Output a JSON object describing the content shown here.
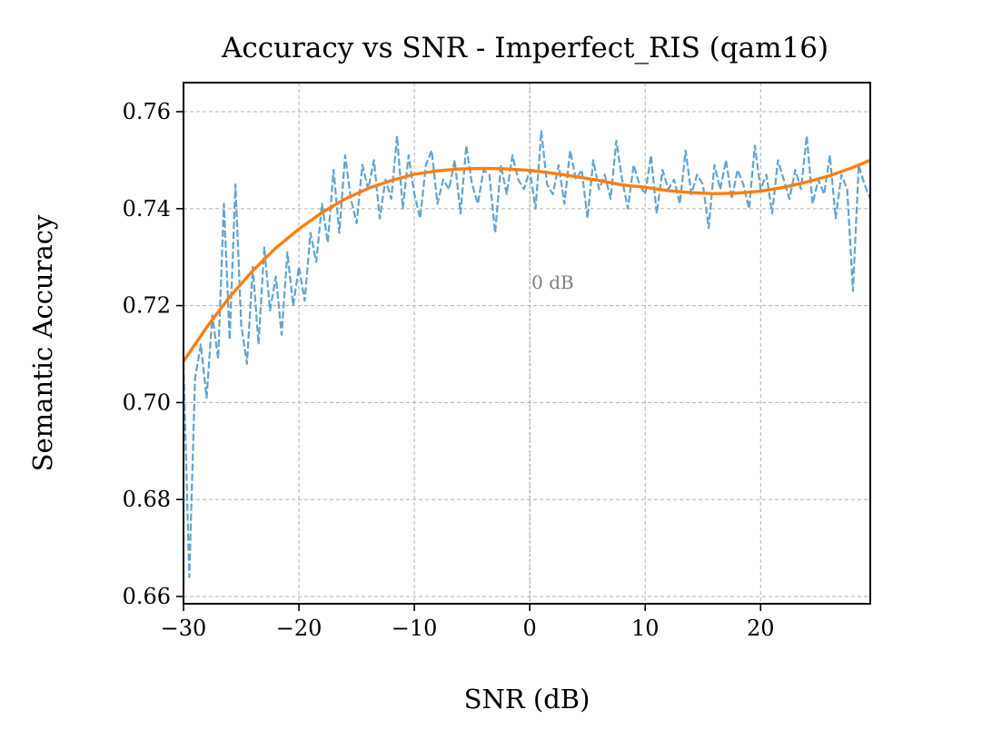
{
  "chart_data": {
    "type": "line",
    "title": "Accuracy vs SNR - Imperfect_RIS (qam16)",
    "xlabel": "SNR (dB)",
    "ylabel": "Semantic Accuracy",
    "xlim": [
      -30,
      29.5
    ],
    "ylim": [
      0.6585,
      0.766
    ],
    "xticks": [
      -30,
      -20,
      -10,
      0,
      10,
      20
    ],
    "xtick_labels": [
      "−30",
      "−20",
      "−10",
      "0",
      "10",
      "20"
    ],
    "yticks": [
      0.66,
      0.68,
      0.7,
      0.72,
      0.74,
      0.76
    ],
    "ytick_labels": [
      "0.66",
      "0.68",
      "0.70",
      "0.72",
      "0.74",
      "0.76"
    ],
    "grid": true,
    "annotation": {
      "text": "0 dB",
      "x": 0
    },
    "series": [
      {
        "style": "dashed",
        "color": "#5b9ecb",
        "x_start": -30,
        "x_step": 0.5,
        "values": [
          0.708,
          0.664,
          0.705,
          0.712,
          0.701,
          0.718,
          0.709,
          0.741,
          0.713,
          0.745,
          0.716,
          0.708,
          0.728,
          0.712,
          0.732,
          0.719,
          0.726,
          0.714,
          0.731,
          0.72,
          0.728,
          0.721,
          0.735,
          0.729,
          0.741,
          0.733,
          0.748,
          0.735,
          0.751,
          0.742,
          0.737,
          0.749,
          0.744,
          0.75,
          0.738,
          0.746,
          0.742,
          0.755,
          0.74,
          0.751,
          0.743,
          0.738,
          0.749,
          0.752,
          0.741,
          0.746,
          0.744,
          0.75,
          0.739,
          0.753,
          0.745,
          0.741,
          0.748,
          0.747,
          0.735,
          0.749,
          0.743,
          0.751,
          0.746,
          0.744,
          0.748,
          0.74,
          0.756,
          0.745,
          0.743,
          0.749,
          0.741,
          0.752,
          0.746,
          0.748,
          0.738,
          0.75,
          0.744,
          0.747,
          0.742,
          0.754,
          0.746,
          0.74,
          0.749,
          0.745,
          0.743,
          0.751,
          0.739,
          0.748,
          0.744,
          0.746,
          0.741,
          0.752,
          0.743,
          0.747,
          0.745,
          0.736,
          0.749,
          0.744,
          0.75,
          0.742,
          0.748,
          0.745,
          0.74,
          0.753,
          0.744,
          0.747,
          0.739,
          0.75,
          0.746,
          0.742,
          0.748,
          0.744,
          0.755,
          0.741,
          0.746,
          0.743,
          0.751,
          0.738,
          0.747,
          0.744,
          0.723,
          0.749,
          0.745,
          0.742
        ]
      },
      {
        "style": "solid",
        "color": "#ff7f0e",
        "x": [
          -30,
          -28,
          -26,
          -24,
          -22,
          -20,
          -18,
          -16,
          -14,
          -12,
          -10,
          -8,
          -6,
          -4,
          -2,
          0,
          2,
          4,
          6,
          8,
          10,
          12,
          14,
          16,
          18,
          20,
          22,
          24,
          26,
          28,
          29.5
        ],
        "values": [
          0.7085,
          0.7155,
          0.7218,
          0.7272,
          0.7319,
          0.7358,
          0.7392,
          0.742,
          0.7442,
          0.7458,
          0.7471,
          0.7478,
          0.7482,
          0.7483,
          0.7482,
          0.7479,
          0.7473,
          0.7466,
          0.7458,
          0.7449,
          0.7444,
          0.7437,
          0.7433,
          0.7431,
          0.7432,
          0.7436,
          0.7444,
          0.7455,
          0.7468,
          0.7485,
          0.75
        ]
      }
    ]
  }
}
